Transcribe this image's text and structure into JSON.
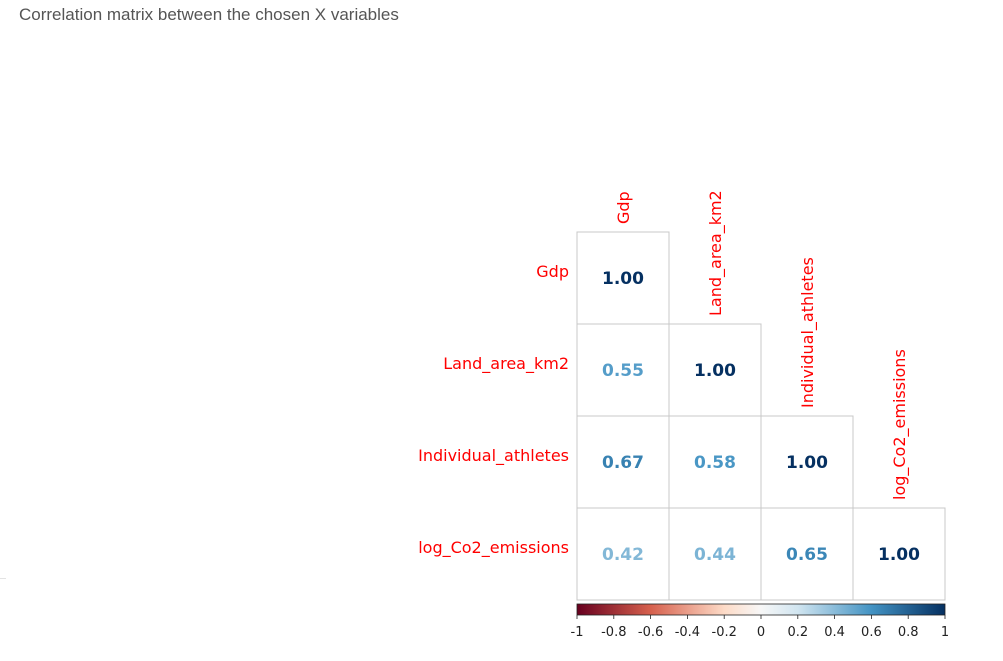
{
  "page": {
    "title": "Correlation matrix between the chosen X variables"
  },
  "chart_data": {
    "type": "heatmap",
    "title": "Correlation matrix between the chosen X variables",
    "layout": "lower-triangle",
    "variables": [
      "Gdp",
      "Land_area_km2",
      "Individual_athletes",
      "log_Co2_emissions"
    ],
    "matrix": [
      [
        1.0,
        null,
        null,
        null
      ],
      [
        0.55,
        1.0,
        null,
        null
      ],
      [
        0.67,
        0.58,
        1.0,
        null
      ],
      [
        0.42,
        0.44,
        0.65,
        1.0
      ]
    ],
    "label_color": "#ff0000",
    "colorbar": {
      "range": [
        -1,
        1
      ],
      "ticks": [
        "-1",
        "-0.8",
        "-0.6",
        "-0.4",
        "-0.2",
        "0",
        "0.2",
        "0.4",
        "0.6",
        "0.8",
        "1"
      ],
      "colormap": "RdBu",
      "stops": [
        {
          "v": -1.0,
          "c": "#67001f"
        },
        {
          "v": -0.6,
          "c": "#d6604d"
        },
        {
          "v": -0.2,
          "c": "#fddbc7"
        },
        {
          "v": 0.0,
          "c": "#f7f7f7"
        },
        {
          "v": 0.2,
          "c": "#d1e5f0"
        },
        {
          "v": 0.6,
          "c": "#4393c3"
        },
        {
          "v": 1.0,
          "c": "#053061"
        }
      ]
    }
  }
}
